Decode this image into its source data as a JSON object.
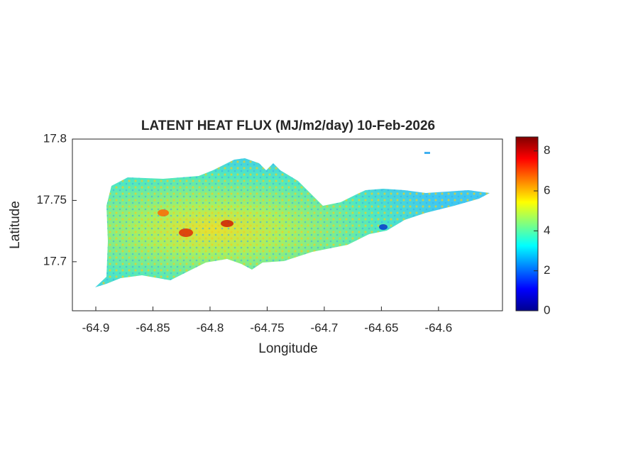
{
  "chart_data": {
    "type": "map",
    "title": "LATENT HEAT FLUX (MJ/m2/day) 10-Feb-2026",
    "xlabel": "Longitude",
    "ylabel": "Latitude",
    "xlim": [
      -64.9205,
      -64.544
    ],
    "xticks": [
      -64.9,
      -64.85,
      -64.8,
      -64.75,
      -64.7,
      -64.65,
      -64.6
    ],
    "ylim": [
      17.66,
      17.8
    ],
    "yticks": [
      17.7,
      17.75,
      17.8
    ],
    "colorbar": {
      "clim": [
        0,
        8.7
      ],
      "ticks": [
        0,
        2,
        4,
        6,
        8
      ]
    }
  }
}
